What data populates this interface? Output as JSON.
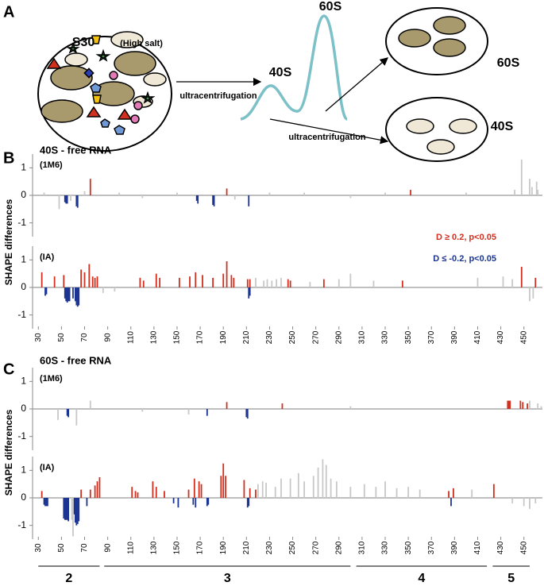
{
  "diagram": {
    "label": "A",
    "pool": "S30",
    "pool_note": "(High salt)",
    "peak_40": "40S",
    "peak_60": "60S",
    "step_1": "ultracentrifugation",
    "step_2": "ultracentrifugation",
    "out_60": "60S",
    "out_40": "40S"
  },
  "panels": [
    {
      "label": "B",
      "title": "40S - free RNA",
      "ylabel": "SHAPE differences"
    },
    {
      "label": "C",
      "title": "60S - free RNA",
      "ylabel": "SHAPE differences"
    }
  ],
  "domains": [
    {
      "label": "2",
      "start": 30,
      "end": 83
    },
    {
      "label": "3",
      "start": 87,
      "end": 300
    },
    {
      "label": "4",
      "start": 305,
      "end": 418
    },
    {
      "label": "5",
      "start": 423,
      "end": 455
    }
  ],
  "chart_data": [
    {
      "type": "bar",
      "subtitle": "(1M6)",
      "xlim": [
        25,
        466
      ],
      "ylim": [
        -1.5,
        1.5
      ],
      "yticks": [
        -1,
        0,
        1
      ],
      "series": [
        {
          "name": "D ≥ 0.2, p<0.05",
          "color": "#d2301e",
          "x": [
            75,
            193,
            352
          ],
          "values": [
            0.6,
            0.25,
            0.2
          ]
        },
        {
          "name": "D ≤ -0.2, p<0.05",
          "color": "#1c3592",
          "x": [
            53,
            54,
            55,
            63,
            64,
            167,
            168,
            181,
            182,
            212
          ],
          "values": [
            -0.25,
            -0.3,
            -0.3,
            -0.4,
            -0.45,
            -0.2,
            -0.3,
            -0.35,
            -0.4,
            -0.4
          ]
        },
        {
          "color": "#c8c8c8",
          "x": [
            35,
            48,
            58,
            70,
            100,
            120,
            150,
            200,
            230,
            260,
            300,
            330,
            400,
            442,
            448,
            455,
            457,
            461,
            462
          ],
          "values": [
            0.1,
            -0.5,
            -0.2,
            0.15,
            0.1,
            -0.1,
            0.1,
            -0.15,
            0.1,
            0.1,
            -0.1,
            0.1,
            0.1,
            0.2,
            1.3,
            0.6,
            0.3,
            0.5,
            0.2
          ]
        }
      ]
    },
    {
      "type": "bar",
      "subtitle": "(IA)",
      "xlim": [
        25,
        466
      ],
      "ylim": [
        -1.5,
        1.5
      ],
      "yticks": [
        -1,
        0,
        1
      ],
      "xticks": [
        30,
        50,
        70,
        90,
        110,
        130,
        150,
        170,
        190,
        210,
        230,
        250,
        270,
        290,
        310,
        330,
        350,
        370,
        390,
        410,
        430,
        450
      ],
      "series": [
        {
          "color": "#d2301e",
          "x": [
            33,
            44,
            52,
            67,
            70,
            74,
            77,
            79,
            81,
            118,
            121,
            132,
            135,
            152,
            161,
            166,
            172,
            181,
            190,
            193,
            197,
            199,
            211,
            213,
            246,
            248,
            277,
            345,
            448,
            460
          ],
          "values": [
            0.55,
            0.4,
            0.45,
            0.65,
            0.55,
            0.85,
            0.4,
            0.35,
            0.4,
            0.35,
            0.25,
            0.5,
            0.35,
            0.35,
            0.4,
            0.55,
            0.45,
            0.35,
            0.5,
            0.95,
            0.45,
            0.35,
            0.3,
            0.3,
            0.3,
            0.25,
            0.3,
            0.25,
            0.75,
            0.35
          ]
        },
        {
          "color": "#1c3592",
          "x": [
            36,
            37,
            53,
            54,
            55,
            56,
            57,
            60,
            62,
            63,
            64,
            65,
            212,
            213
          ],
          "values": [
            -0.3,
            -0.25,
            -0.4,
            -0.5,
            -0.55,
            -0.5,
            -0.5,
            -0.4,
            -0.5,
            -0.65,
            -0.7,
            -0.65,
            -0.4,
            -0.3
          ]
        },
        {
          "color": "#c8c8c8",
          "x": [
            86,
            96,
            218,
            225,
            228,
            232,
            236,
            240,
            265,
            290,
            300,
            320,
            410,
            432,
            440,
            455,
            458
          ],
          "values": [
            -0.2,
            -0.15,
            0.35,
            0.25,
            0.3,
            0.25,
            0.3,
            0.35,
            0.2,
            0.3,
            0.5,
            0.25,
            0.35,
            0.4,
            0.3,
            -0.5,
            -0.4
          ]
        }
      ]
    },
    {
      "type": "bar",
      "subtitle": "(1M6)",
      "xlim": [
        25,
        466
      ],
      "ylim": [
        -1.5,
        1.5
      ],
      "yticks": [
        -1,
        0,
        1
      ],
      "series": [
        {
          "color": "#d2301e",
          "x": [
            193,
            241,
            436,
            437,
            438,
            447,
            449,
            453
          ],
          "values": [
            0.25,
            0.2,
            0.3,
            0.3,
            0.3,
            0.3,
            0.25,
            0.2
          ]
        },
        {
          "color": "#1c3592",
          "x": [
            55,
            56,
            176,
            210,
            211
          ],
          "values": [
            -0.25,
            -0.3,
            -0.25,
            -0.3,
            -0.35
          ]
        },
        {
          "color": "#c8c8c8",
          "x": [
            47,
            63,
            75,
            120,
            160,
            300,
            455,
            462,
            465
          ],
          "values": [
            -0.4,
            -0.6,
            0.3,
            -0.1,
            -0.2,
            0.1,
            0.3,
            0.2,
            0.1
          ]
        }
      ]
    },
    {
      "type": "bar",
      "subtitle": "(IA)",
      "xlim": [
        25,
        466
      ],
      "ylim": [
        -1.5,
        1.5
      ],
      "yticks": [
        -1,
        0,
        1
      ],
      "xticks": [
        30,
        50,
        70,
        90,
        110,
        130,
        150,
        170,
        190,
        210,
        230,
        250,
        270,
        290,
        310,
        330,
        350,
        370,
        390,
        410,
        430,
        450
      ],
      "series": [
        {
          "color": "#d2301e",
          "x": [
            33,
            67,
            75,
            79,
            81,
            83,
            111,
            114,
            116,
            129,
            132,
            139,
            160,
            165,
            169,
            171,
            188,
            190,
            192,
            208,
            213,
            218,
            385,
            389,
            424
          ],
          "values": [
            0.25,
            0.3,
            0.3,
            0.45,
            0.6,
            0.75,
            0.4,
            0.25,
            0.2,
            0.6,
            0.4,
            0.25,
            0.3,
            0.7,
            0.6,
            0.5,
            0.8,
            1.25,
            0.8,
            0.65,
            0.35,
            0.3,
            0.25,
            0.35,
            0.5
          ]
        },
        {
          "color": "#1c3592",
          "x": [
            35,
            36,
            37,
            38,
            52,
            53,
            54,
            55,
            56,
            61,
            62,
            63,
            64,
            65,
            72,
            147,
            151,
            164,
            166,
            176,
            177,
            211,
            212,
            387
          ],
          "values": [
            -0.25,
            -0.3,
            -0.3,
            -0.3,
            -0.75,
            -0.8,
            -0.8,
            -0.8,
            -0.85,
            -0.6,
            -0.9,
            -1.0,
            -0.95,
            -0.85,
            -0.3,
            -0.2,
            -0.35,
            -0.25,
            -0.35,
            -0.3,
            -0.25,
            -0.35,
            -0.3,
            -0.3
          ]
        },
        {
          "color": "#c8c8c8",
          "x": [
            59,
            60,
            220,
            224,
            227,
            235,
            240,
            248,
            255,
            260,
            268,
            272,
            276,
            279,
            283,
            288,
            300,
            312,
            322,
            330,
            340,
            350,
            360,
            405,
            440,
            450,
            455,
            460
          ],
          "values": [
            -0.8,
            -1.4,
            0.5,
            0.6,
            0.55,
            0.4,
            0.7,
            0.7,
            0.9,
            0.6,
            0.8,
            1.1,
            1.4,
            1.2,
            0.7,
            0.6,
            0.4,
            0.5,
            0.4,
            0.6,
            0.35,
            0.4,
            0.3,
            0.3,
            -0.2,
            -0.3,
            -0.4,
            -0.2
          ]
        }
      ]
    }
  ]
}
